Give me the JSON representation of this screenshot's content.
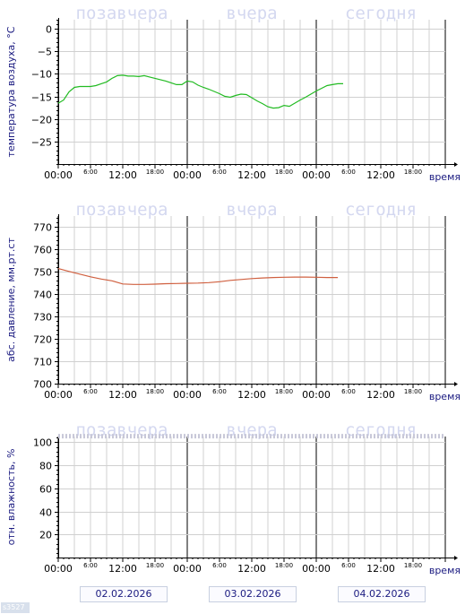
{
  "day_labels": [
    "позавчера",
    "вчера",
    "сегодня"
  ],
  "x_axis": {
    "major_ticks": [
      "00:00",
      "12:00",
      "00:00",
      "12:00",
      "00:00",
      "12:00"
    ],
    "minor_ticks": [
      "6:00",
      "18:00",
      "6:00",
      "18:00",
      "6:00",
      "18:00"
    ],
    "label": "время"
  },
  "dates": [
    "02.02.2026",
    "03.02.2026",
    "04.02.2026"
  ],
  "stamp": "s3527",
  "colors": {
    "temperature": "#22bb22",
    "pressure": "#d06040",
    "day_label": "#d4d8f0",
    "axis_text": "#1a1a80"
  },
  "chart_data": [
    {
      "type": "line",
      "ylabel": "температура воздуха, °C",
      "ylim": [
        -30,
        2
      ],
      "yticks": [
        0,
        -5,
        -10,
        -15,
        -20,
        -25
      ],
      "xlim": [
        0,
        72
      ],
      "grid": true,
      "series": [
        {
          "x": [
            0,
            1,
            2,
            3,
            4,
            5,
            6,
            7,
            8,
            9,
            10,
            11,
            12,
            13,
            14,
            15,
            16,
            17,
            18,
            19,
            20,
            21,
            22,
            23,
            24,
            25,
            26,
            27,
            28,
            29,
            30,
            31,
            32,
            33,
            34,
            35,
            36,
            37,
            38,
            39,
            40,
            41,
            42,
            43,
            44,
            45,
            46,
            47,
            48,
            49,
            50,
            51,
            52,
            53
          ],
          "y": [
            -16.5,
            -15.8,
            -14,
            -13,
            -12.8,
            -12.8,
            -12.8,
            -12.6,
            -12.2,
            -11.8,
            -11,
            -10.4,
            -10.3,
            -10.5,
            -10.5,
            -10.6,
            -10.4,
            -10.7,
            -11,
            -11.3,
            -11.6,
            -12,
            -12.4,
            -12.4,
            -11.6,
            -11.8,
            -12.5,
            -13,
            -13.4,
            -13.9,
            -14.4,
            -15,
            -15.2,
            -14.8,
            -14.5,
            -14.6,
            -15.3,
            -16,
            -16.6,
            -17.3,
            -17.6,
            -17.5,
            -17,
            -17.2,
            -16.5,
            -15.8,
            -15.2,
            -14.5,
            -13.8,
            -13.2,
            -12.6,
            -12.4,
            -12.2,
            -12.2
          ]
        }
      ]
    },
    {
      "type": "line",
      "ylabel": "абс. давление,  мм.рт.ст",
      "ylim": [
        700,
        775
      ],
      "yticks": [
        770,
        760,
        750,
        740,
        730,
        720,
        710,
        700
      ],
      "xlim": [
        0,
        72
      ],
      "grid": true,
      "series": [
        {
          "x": [
            0,
            2,
            4,
            6,
            8,
            10,
            12,
            14,
            16,
            18,
            20,
            22,
            24,
            26,
            28,
            30,
            32,
            34,
            36,
            38,
            40,
            42,
            44,
            46,
            48,
            50,
            52
          ],
          "y": [
            751.5,
            750.2,
            749,
            747.8,
            746.8,
            746,
            744.6,
            744.4,
            744.4,
            744.5,
            744.7,
            744.8,
            744.9,
            745,
            745.2,
            745.6,
            746.2,
            746.6,
            747,
            747.3,
            747.5,
            747.6,
            747.7,
            747.7,
            747.6,
            747.5,
            747.5
          ]
        }
      ]
    },
    {
      "type": "line",
      "ylabel": "отн. влажность,  %",
      "ylim": [
        0,
        105
      ],
      "yticks": [
        100,
        80,
        60,
        40,
        20
      ],
      "xlim": [
        0,
        72
      ],
      "grid": true,
      "series": []
    }
  ]
}
